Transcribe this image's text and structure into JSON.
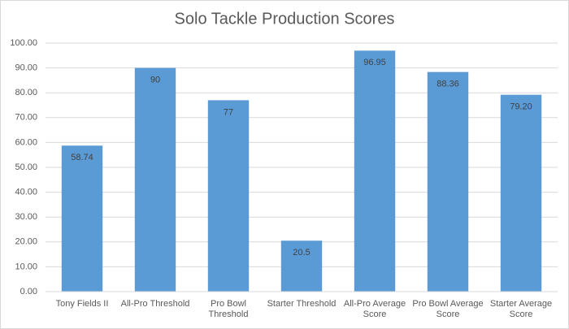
{
  "chart_data": {
    "type": "bar",
    "title": "Solo Tackle Production Scores",
    "categories": [
      "Tony Fields II",
      "All-Pro Threshold",
      "Pro Bowl Threshold",
      "Starter Threshold",
      "All-Pro Average Score",
      "Pro Bowl Average Score",
      "Starter Average Score"
    ],
    "values": [
      58.74,
      90,
      77,
      20.5,
      96.95,
      88.36,
      79.2
    ],
    "value_labels": [
      "58.74",
      "90",
      "77",
      "20.5",
      "96.95",
      "88.36",
      "79.20"
    ],
    "color": "#5b9bd5",
    "ylim": [
      0,
      100
    ],
    "yticks": [
      {
        "value": 0,
        "label": "0.00"
      },
      {
        "value": 10,
        "label": "10.00"
      },
      {
        "value": 20,
        "label": "20.00"
      },
      {
        "value": 30,
        "label": "30.00"
      },
      {
        "value": 40,
        "label": "40.00"
      },
      {
        "value": 50,
        "label": "50.00"
      },
      {
        "value": 60,
        "label": "60.00"
      },
      {
        "value": 70,
        "label": "70.00"
      },
      {
        "value": 80,
        "label": "80.00"
      },
      {
        "value": 90,
        "label": "90.00"
      },
      {
        "value": 100,
        "label": "100.00"
      }
    ],
    "grid": true
  }
}
